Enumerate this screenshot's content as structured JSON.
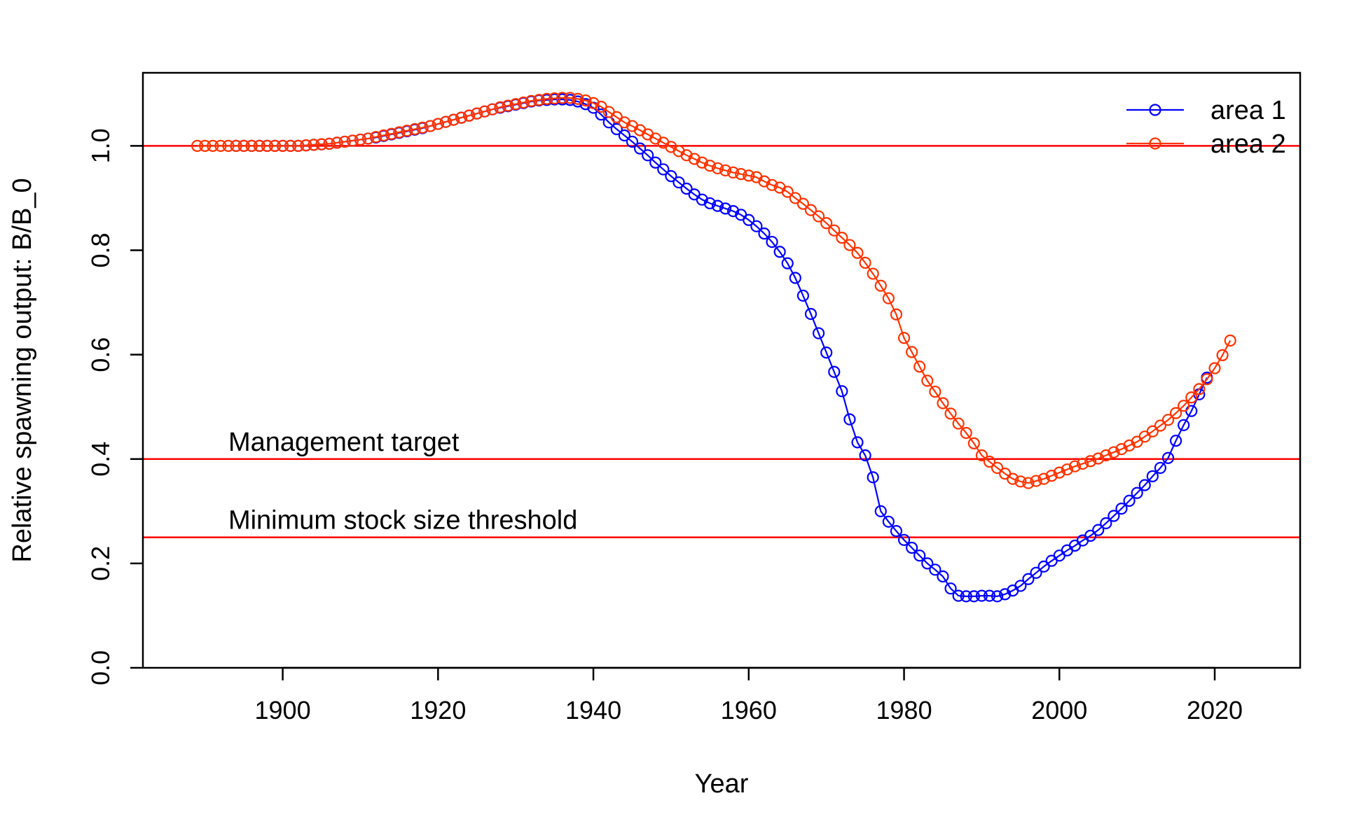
{
  "chart_data": {
    "type": "line",
    "xlabel": "Year",
    "ylabel": "Relative spawning output: B/B_0",
    "xlim": [
      1882,
      2031
    ],
    "ylim": [
      0,
      1.14
    ],
    "x_ticks": [
      1900,
      1920,
      1940,
      1960,
      1980,
      2000,
      2020
    ],
    "y_ticks": [
      0.0,
      0.2,
      0.4,
      0.6,
      0.8,
      1.0
    ],
    "y_tick_labels": [
      "0.0",
      "0.2",
      "0.4",
      "0.6",
      "0.8",
      "1.0"
    ],
    "grid": false,
    "legend_position": "top-right",
    "reference_lines": [
      {
        "y": 1.0,
        "label": "",
        "color": "#ff0000"
      },
      {
        "y": 0.4,
        "label": "Management target",
        "color": "#ff0000"
      },
      {
        "y": 0.25,
        "label": "Minimum stock size threshold",
        "color": "#ff0000"
      }
    ],
    "series": [
      {
        "name": "area 1",
        "color": "#0000ff",
        "x_start": 1894,
        "values": [
          1.0,
          1.0,
          1.0,
          1.0,
          1.0,
          1.0,
          1.0,
          1.0,
          1.0,
          1.001,
          1.002,
          1.003,
          1.004,
          1.006,
          1.008,
          1.01,
          1.012,
          1.014,
          1.016,
          1.019,
          1.022,
          1.025,
          1.028,
          1.031,
          1.034,
          1.038,
          1.042,
          1.046,
          1.05,
          1.054,
          1.058,
          1.062,
          1.066,
          1.07,
          1.073,
          1.076,
          1.079,
          1.082,
          1.085,
          1.087,
          1.088,
          1.089,
          1.089,
          1.088,
          1.085,
          1.08,
          1.073,
          1.06,
          1.045,
          1.032,
          1.02,
          1.008,
          0.995,
          0.982,
          0.968,
          0.955,
          0.942,
          0.93,
          0.918,
          0.907,
          0.897,
          0.89,
          0.885,
          0.88,
          0.875,
          0.868,
          0.858,
          0.846,
          0.832,
          0.816,
          0.797,
          0.775,
          0.747,
          0.713,
          0.678,
          0.641,
          0.604,
          0.567,
          0.53,
          0.476,
          0.432,
          0.407,
          0.365,
          0.3,
          0.28,
          0.262,
          0.245,
          0.23,
          0.215,
          0.2,
          0.188,
          0.175,
          0.152,
          0.138,
          0.137,
          0.137,
          0.138,
          0.138,
          0.137,
          0.141,
          0.148,
          0.157,
          0.17,
          0.182,
          0.194,
          0.205,
          0.215,
          0.225,
          0.234,
          0.244,
          0.253,
          0.264,
          0.277,
          0.291,
          0.305,
          0.32,
          0.335,
          0.35,
          0.367,
          0.383,
          0.402,
          0.435,
          0.465,
          0.492,
          0.524,
          0.556
        ]
      },
      {
        "name": "area 2",
        "color": "#ff3300",
        "x_start": 1889,
        "values": [
          1.0,
          1.0,
          1.0,
          1.0,
          1.0,
          1.0,
          1.0,
          1.0,
          1.0,
          1.0,
          1.0,
          1.0,
          1.0,
          1.0,
          1.001,
          1.002,
          1.003,
          1.004,
          1.006,
          1.008,
          1.01,
          1.012,
          1.014,
          1.017,
          1.02,
          1.023,
          1.026,
          1.029,
          1.032,
          1.035,
          1.038,
          1.042,
          1.046,
          1.05,
          1.054,
          1.058,
          1.062,
          1.066,
          1.07,
          1.074,
          1.077,
          1.08,
          1.083,
          1.086,
          1.088,
          1.09,
          1.091,
          1.092,
          1.092,
          1.09,
          1.087,
          1.082,
          1.075,
          1.065,
          1.055,
          1.045,
          1.038,
          1.03,
          1.022,
          1.014,
          1.006,
          0.998,
          0.99,
          0.982,
          0.975,
          0.968,
          0.962,
          0.957,
          0.953,
          0.949,
          0.946,
          0.943,
          0.94,
          0.932,
          0.925,
          0.92,
          0.912,
          0.9,
          0.889,
          0.877,
          0.865,
          0.852,
          0.838,
          0.824,
          0.81,
          0.795,
          0.776,
          0.755,
          0.732,
          0.708,
          0.677,
          0.632,
          0.605,
          0.577,
          0.55,
          0.529,
          0.507,
          0.487,
          0.468,
          0.45,
          0.43,
          0.407,
          0.395,
          0.383,
          0.372,
          0.362,
          0.357,
          0.354,
          0.358,
          0.362,
          0.368,
          0.374,
          0.38,
          0.386,
          0.391,
          0.396,
          0.401,
          0.407,
          0.413,
          0.419,
          0.426,
          0.433,
          0.443,
          0.453,
          0.464,
          0.475,
          0.488,
          0.502,
          0.518,
          0.534,
          0.553,
          0.574,
          0.599,
          0.627
        ]
      }
    ]
  }
}
